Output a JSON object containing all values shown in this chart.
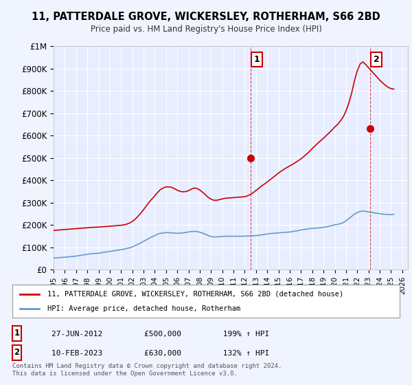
{
  "title": "11, PATTERDALE GROVE, WICKERSLEY, ROTHERHAM, S66 2BD",
  "subtitle": "Price paid vs. HM Land Registry's House Price Index (HPI)",
  "ylabel_ticks": [
    "£0",
    "£100K",
    "£200K",
    "£300K",
    "£400K",
    "£500K",
    "£600K",
    "£700K",
    "£800K",
    "£900K",
    "£1M"
  ],
  "ytick_values": [
    0,
    100000,
    200000,
    300000,
    400000,
    500000,
    600000,
    700000,
    800000,
    900000,
    1000000
  ],
  "xlim_start": 1995.0,
  "xlim_end": 2026.5,
  "ylim_min": 0,
  "ylim_max": 1000000,
  "background_color": "#f0f4ff",
  "plot_bg_color": "#e8eeff",
  "grid_color": "#ffffff",
  "red_line_color": "#cc0000",
  "blue_line_color": "#6699cc",
  "marker1_date": 2012.49,
  "marker1_value": 500000,
  "marker2_date": 2023.12,
  "marker2_value": 630000,
  "legend_red_label": "11, PATTERDALE GROVE, WICKERSLEY, ROTHERHAM, S66 2BD (detached house)",
  "legend_blue_label": "HPI: Average price, detached house, Rotherham",
  "annotation1_label": "1",
  "annotation2_label": "2",
  "table_row1": [
    "1",
    "27-JUN-2012",
    "£500,000",
    "199% ↑ HPI"
  ],
  "table_row2": [
    "2",
    "10-FEB-2023",
    "£630,000",
    "132% ↑ HPI"
  ],
  "footer": "Contains HM Land Registry data © Crown copyright and database right 2024.\nThis data is licensed under the Open Government Licence v3.0.",
  "hpi_years": [
    1995,
    1995.25,
    1995.5,
    1995.75,
    1996,
    1996.25,
    1996.5,
    1996.75,
    1997,
    1997.25,
    1997.5,
    1997.75,
    1998,
    1998.25,
    1998.5,
    1998.75,
    1999,
    1999.25,
    1999.5,
    1999.75,
    2000,
    2000.25,
    2000.5,
    2000.75,
    2001,
    2001.25,
    2001.5,
    2001.75,
    2002,
    2002.25,
    2002.5,
    2002.75,
    2003,
    2003.25,
    2003.5,
    2003.75,
    2004,
    2004.25,
    2004.5,
    2004.75,
    2005,
    2005.25,
    2005.5,
    2005.75,
    2006,
    2006.25,
    2006.5,
    2006.75,
    2007,
    2007.25,
    2007.5,
    2007.75,
    2008,
    2008.25,
    2008.5,
    2008.75,
    2009,
    2009.25,
    2009.5,
    2009.75,
    2010,
    2010.25,
    2010.5,
    2010.75,
    2011,
    2011.25,
    2011.5,
    2011.75,
    2012,
    2012.25,
    2012.5,
    2012.75,
    2013,
    2013.25,
    2013.5,
    2013.75,
    2014,
    2014.25,
    2014.5,
    2014.75,
    2015,
    2015.25,
    2015.5,
    2015.75,
    2016,
    2016.25,
    2016.5,
    2016.75,
    2017,
    2017.25,
    2017.5,
    2017.75,
    2018,
    2018.25,
    2018.5,
    2018.75,
    2019,
    2019.25,
    2019.5,
    2019.75,
    2020,
    2020.25,
    2020.5,
    2020.75,
    2021,
    2021.25,
    2021.5,
    2021.75,
    2022,
    2022.25,
    2022.5,
    2022.75,
    2023,
    2023.25,
    2023.5,
    2023.75,
    2024,
    2024.25,
    2024.5,
    2024.75,
    2025,
    2025.25
  ],
  "hpi_values": [
    52000,
    52500,
    53000,
    54000,
    55000,
    56000,
    57500,
    58500,
    60000,
    62000,
    64000,
    66000,
    68000,
    70000,
    71000,
    72000,
    73000,
    75000,
    77000,
    79000,
    81000,
    83000,
    85000,
    87000,
    89000,
    91000,
    94000,
    97000,
    101000,
    107000,
    113000,
    119000,
    126000,
    133000,
    140000,
    146000,
    152000,
    158000,
    162000,
    164000,
    165000,
    165000,
    164000,
    163000,
    162000,
    163000,
    164000,
    166000,
    168000,
    170000,
    171000,
    170000,
    167000,
    163000,
    158000,
    152000,
    148000,
    146000,
    146000,
    147000,
    148000,
    149000,
    149000,
    149000,
    149000,
    149000,
    149000,
    149000,
    149500,
    150000,
    150500,
    151000,
    152000,
    153000,
    155000,
    157000,
    159000,
    161000,
    162000,
    163000,
    164000,
    165000,
    166000,
    167000,
    168000,
    170000,
    172000,
    174000,
    177000,
    179000,
    181000,
    183000,
    184000,
    185000,
    186000,
    187000,
    189000,
    191000,
    194000,
    197000,
    200000,
    202000,
    205000,
    210000,
    218000,
    228000,
    238000,
    248000,
    255000,
    260000,
    262000,
    260000,
    258000,
    256000,
    254000,
    252000,
    250000,
    248000,
    247000,
    246000,
    246000,
    247000
  ],
  "red_years": [
    1995,
    1995.25,
    1995.5,
    1995.75,
    1996,
    1996.25,
    1996.5,
    1996.75,
    1997,
    1997.25,
    1997.5,
    1997.75,
    1998,
    1998.25,
    1998.5,
    1998.75,
    1999,
    1999.25,
    1999.5,
    1999.75,
    2000,
    2000.25,
    2000.5,
    2000.75,
    2001,
    2001.25,
    2001.5,
    2001.75,
    2002,
    2002.25,
    2002.5,
    2002.75,
    2003,
    2003.25,
    2003.5,
    2003.75,
    2004,
    2004.25,
    2004.5,
    2004.75,
    2005,
    2005.25,
    2005.5,
    2005.75,
    2006,
    2006.25,
    2006.5,
    2006.75,
    2007,
    2007.25,
    2007.5,
    2007.75,
    2008,
    2008.25,
    2008.5,
    2008.75,
    2009,
    2009.25,
    2009.5,
    2009.75,
    2010,
    2010.25,
    2010.5,
    2010.75,
    2011,
    2011.25,
    2011.5,
    2011.75,
    2012,
    2012.25,
    2012.5,
    2012.75,
    2013,
    2013.25,
    2013.5,
    2013.75,
    2014,
    2014.25,
    2014.5,
    2014.75,
    2015,
    2015.25,
    2015.5,
    2015.75,
    2016,
    2016.25,
    2016.5,
    2016.75,
    2017,
    2017.25,
    2017.5,
    2017.75,
    2018,
    2018.25,
    2018.5,
    2018.75,
    2019,
    2019.25,
    2019.5,
    2019.75,
    2020,
    2020.25,
    2020.5,
    2020.75,
    2021,
    2021.25,
    2021.5,
    2021.75,
    2022,
    2022.25,
    2022.5,
    2022.75,
    2023,
    2023.25,
    2023.5,
    2023.75,
    2024,
    2024.25,
    2024.5,
    2024.75,
    2025,
    2025.25
  ],
  "red_values": [
    175000,
    176000,
    177000,
    178000,
    179000,
    180000,
    181000,
    182000,
    183000,
    184000,
    185000,
    186000,
    187000,
    188000,
    189000,
    189500,
    190000,
    191000,
    192000,
    193000,
    194000,
    195000,
    196000,
    197000,
    198000,
    200000,
    203000,
    208000,
    215000,
    225000,
    238000,
    252000,
    268000,
    285000,
    302000,
    316000,
    330000,
    345000,
    358000,
    365000,
    370000,
    370000,
    368000,
    362000,
    355000,
    350000,
    348000,
    349000,
    353000,
    360000,
    365000,
    363000,
    356000,
    346000,
    335000,
    323000,
    315000,
    310000,
    310000,
    313000,
    316000,
    319000,
    320000,
    321000,
    322000,
    323000,
    324000,
    325000,
    326000,
    330000,
    336000,
    344000,
    354000,
    364000,
    374000,
    383000,
    392000,
    402000,
    412000,
    422000,
    432000,
    441000,
    449000,
    457000,
    464000,
    471000,
    479000,
    487000,
    496000,
    506000,
    517000,
    529000,
    542000,
    554000,
    566000,
    577000,
    588000,
    600000,
    612000,
    625000,
    638000,
    650000,
    665000,
    683000,
    710000,
    745000,
    790000,
    845000,
    890000,
    920000,
    930000,
    918000,
    904000,
    890000,
    876000,
    862000,
    848000,
    836000,
    825000,
    816000,
    810000,
    808000
  ]
}
